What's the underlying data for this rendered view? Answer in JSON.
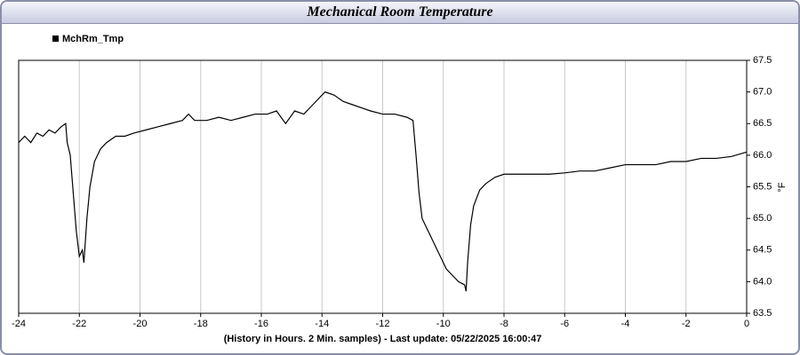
{
  "chart_data": {
    "type": "line",
    "title": "Mechanical Room Temperature",
    "xlabel": "(History in Hours. 2 Min. samples) - Last update: 05/22/2025 16:00:47",
    "ylabel": "°F",
    "x": [
      -24,
      -23.8,
      -23.6,
      -23.4,
      -23.2,
      -23.0,
      -22.8,
      -22.6,
      -22.45,
      -22.4,
      -22.3,
      -22.2,
      -22.1,
      -22.0,
      -21.9,
      -21.85,
      -21.75,
      -21.65,
      -21.5,
      -21.3,
      -21.1,
      -20.8,
      -20.5,
      -20.2,
      -19.8,
      -19.4,
      -19.0,
      -18.6,
      -18.4,
      -18.2,
      -17.8,
      -17.4,
      -17.0,
      -16.6,
      -16.2,
      -15.8,
      -15.5,
      -15.2,
      -14.9,
      -14.6,
      -14.3,
      -14.1,
      -13.9,
      -13.6,
      -13.3,
      -13.0,
      -12.7,
      -12.4,
      -12.0,
      -11.6,
      -11.2,
      -11.0,
      -10.9,
      -10.8,
      -10.7,
      -10.5,
      -10.3,
      -10.1,
      -9.9,
      -9.7,
      -9.5,
      -9.3,
      -9.25,
      -9.2,
      -9.1,
      -9.0,
      -8.8,
      -8.6,
      -8.3,
      -8.0,
      -7.5,
      -7.0,
      -6.5,
      -6.0,
      -5.5,
      -5.0,
      -4.5,
      -4.0,
      -3.5,
      -3.0,
      -2.5,
      -2.0,
      -1.5,
      -1.0,
      -0.5,
      0
    ],
    "series": [
      {
        "name": "MchRm_Tmp",
        "color": "#000000",
        "values": [
          66.2,
          66.3,
          66.2,
          66.35,
          66.3,
          66.4,
          66.35,
          66.45,
          66.5,
          66.2,
          66.0,
          65.4,
          64.8,
          64.4,
          64.5,
          64.3,
          65.0,
          65.5,
          65.9,
          66.1,
          66.2,
          66.3,
          66.3,
          66.35,
          66.4,
          66.45,
          66.5,
          66.55,
          66.65,
          66.55,
          66.55,
          66.6,
          66.55,
          66.6,
          66.65,
          66.65,
          66.7,
          66.5,
          66.7,
          66.65,
          66.8,
          66.9,
          67.0,
          66.95,
          66.85,
          66.8,
          66.75,
          66.7,
          66.65,
          66.65,
          66.6,
          66.55,
          66.0,
          65.4,
          65.0,
          64.8,
          64.6,
          64.4,
          64.2,
          64.1,
          64.0,
          63.95,
          63.85,
          64.3,
          64.9,
          65.2,
          65.45,
          65.55,
          65.65,
          65.7,
          65.7,
          65.7,
          65.7,
          65.72,
          65.75,
          65.75,
          65.8,
          65.85,
          65.85,
          65.85,
          65.9,
          65.9,
          65.95,
          65.95,
          65.98,
          66.05
        ]
      }
    ],
    "xlim": [
      -24,
      0
    ],
    "xticks": [
      -24,
      -22,
      -20,
      -18,
      -16,
      -14,
      -12,
      -10,
      -8,
      -6,
      -4,
      -2,
      0
    ],
    "ylim": [
      63.5,
      67.5
    ],
    "yticks": [
      63.5,
      {
        "value": 64,
        "label": "64.0"
      },
      64.5,
      {
        "value": 65,
        "label": "65.0"
      },
      65.5,
      {
        "value": 66,
        "label": "66.0"
      },
      66.5,
      {
        "value": 67,
        "label": "67.0"
      },
      67.5
    ],
    "grid": true
  }
}
